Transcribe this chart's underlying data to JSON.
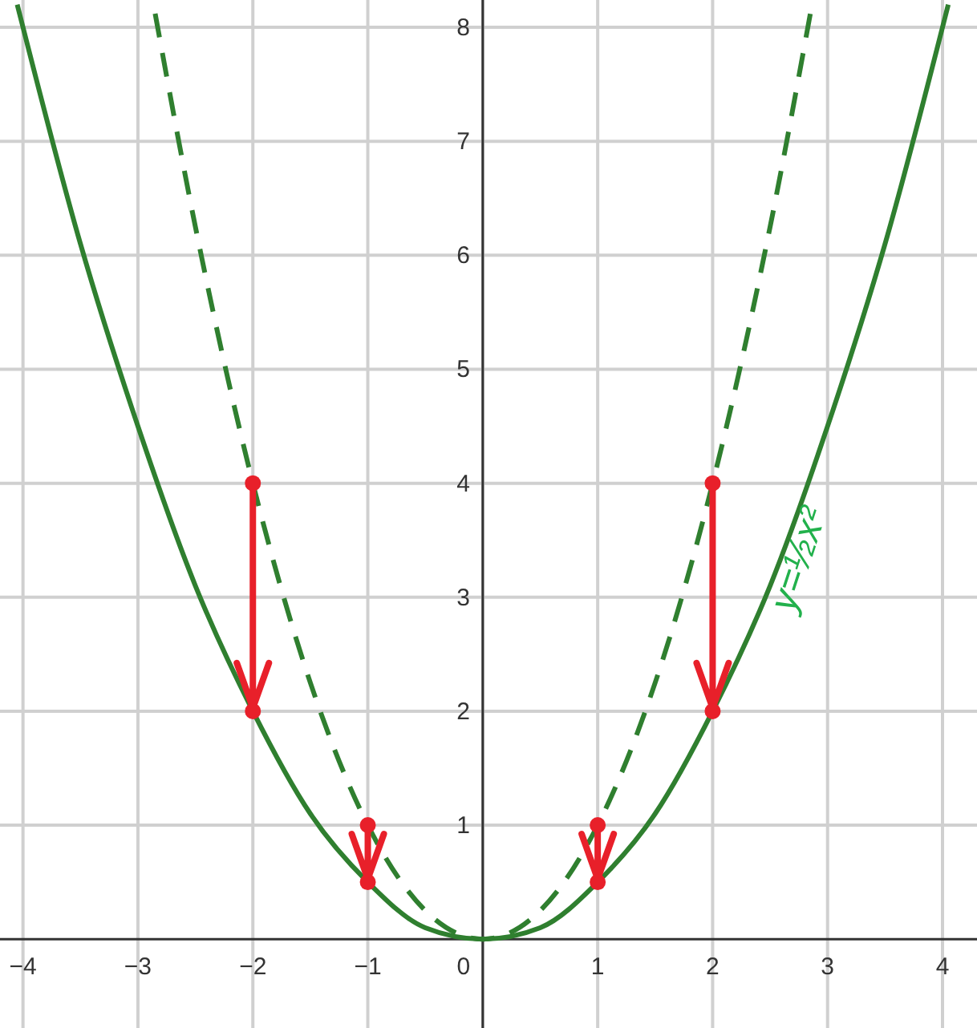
{
  "chart_data": {
    "type": "line",
    "xlim": [
      -4.2,
      4.3
    ],
    "ylim": [
      -0.78,
      8.24
    ],
    "xticks": [
      {
        "value": -4,
        "label": "−4"
      },
      {
        "value": -3,
        "label": "−3"
      },
      {
        "value": -2,
        "label": "−2"
      },
      {
        "value": -1,
        "label": "−1"
      },
      0,
      1,
      2,
      3,
      4
    ],
    "yticks": [
      1,
      2,
      3,
      4,
      5,
      6,
      7,
      8
    ],
    "grid": true,
    "series": [
      {
        "color": "#2f7f2f",
        "line_style": "solid",
        "x": [
          -4.05,
          -3.5,
          -3,
          -2.5,
          -2,
          -1.5,
          -1,
          -0.5,
          0,
          0.5,
          1,
          1.5,
          2,
          2.5,
          3,
          3.5,
          4.05
        ],
        "values": [
          8.2,
          6.1,
          4.5,
          3.1,
          2,
          1.1,
          0.5,
          0.1,
          0,
          0.1,
          0.5,
          1.1,
          2,
          3.1,
          4.5,
          6.1,
          8.2
        ]
      },
      {
        "color": "#2f7f2f",
        "line_style": "dashed",
        "x": [
          -2.85,
          -2.5,
          -2,
          -1.5,
          -1,
          -0.5,
          0,
          0.5,
          1,
          1.5,
          2,
          2.5,
          2.85
        ],
        "values": [
          8.12,
          6.25,
          4,
          2.25,
          1,
          0.25,
          0,
          0.25,
          1,
          2.25,
          4,
          6.25,
          8.12
        ]
      },
      {
        "type": "scatter",
        "color": "#e8202a",
        "marker": "circle",
        "x": [
          -2,
          -2,
          -1,
          -1,
          1,
          1,
          2,
          2
        ],
        "values": [
          4,
          2,
          1,
          0.5,
          1,
          0.5,
          4,
          2
        ]
      }
    ],
    "annotations": [
      "y=½x²"
    ]
  }
}
